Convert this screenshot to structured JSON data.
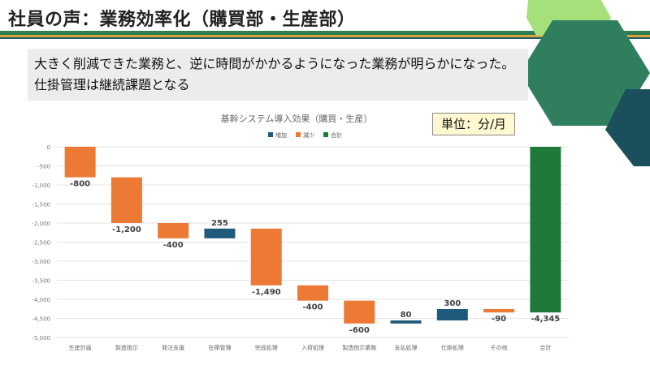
{
  "slide": {
    "title": "社員の声：業務効率化（購買部・生産部）",
    "callout_line1": "大きく削減できた業務と、逆に時間がかかるようになった業務が明らかになった。",
    "callout_line2": "仕掛管理は継続課題となる",
    "unit_label": "単位：分/月"
  },
  "colors": {
    "increase": "#1f5a7a",
    "decrease": "#ec7a35",
    "total": "#1f7a3a",
    "band_green": "#2e7d4f",
    "band_orange": "#d8a23a",
    "hex_light": "#a6e07a",
    "hex_mid": "#2f7f5f",
    "hex_dark": "#1b4f5c"
  },
  "chart_data": {
    "type": "waterfall",
    "title": "基幹システム導入効果（購買・生産）",
    "legend": [
      "増加",
      "減少",
      "合計"
    ],
    "legend_position": "top",
    "categories": [
      "生産計画",
      "製造指示",
      "発注支援",
      "在庫管理",
      "完成処理",
      "入荷処理",
      "製造指示業務",
      "支払処理",
      "仕掛処理",
      "その他",
      "合計"
    ],
    "values": [
      -800,
      -1200,
      -400,
      255,
      -1490,
      -400,
      -600,
      80,
      300,
      -90,
      -4345
    ],
    "data_labels": [
      "-800",
      "-1,200",
      "-400",
      "255",
      "-1,490",
      "-400",
      "-600",
      "80",
      "300",
      "-90",
      "-4,345"
    ],
    "kinds": [
      "decrease",
      "decrease",
      "decrease",
      "increase",
      "decrease",
      "decrease",
      "decrease",
      "increase",
      "increase",
      "decrease",
      "total"
    ],
    "ylim": [
      -5000,
      0
    ],
    "yticks": [
      "0",
      "-500",
      "-1,000",
      "-1,500",
      "-2,000",
      "-2,500",
      "-3,000",
      "-3,500",
      "-4,000",
      "-4,500",
      "-5,000"
    ],
    "grid": true
  }
}
